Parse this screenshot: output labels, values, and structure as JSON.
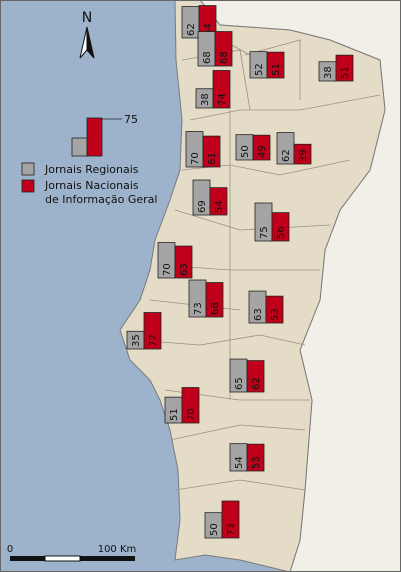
{
  "colors": {
    "sea": "#9db3cc",
    "land": "#e5dcc8",
    "spain": "#f2efe9",
    "border": "#7a7a7a",
    "regionais": "#a4a4a4",
    "nacionais": "#c0001a"
  },
  "north_label": "N",
  "legend": {
    "reference_value": "75",
    "reference_max": 75,
    "items": [
      {
        "name": "regionais-legend",
        "label": "Jornais Regionais",
        "lines": [
          "Jornais Regionais"
        ]
      },
      {
        "name": "nacionais-legend",
        "label": "Jornais Nacionais de Informação Geral",
        "lines": [
          "Jornais Nacionais",
          "de Informação Geral"
        ]
      }
    ]
  },
  "scale_bar": {
    "start_label": "0",
    "end_label": "100 Km"
  },
  "chart_data": {
    "type": "bar",
    "series": [
      {
        "name": "Jornais Regionais"
      },
      {
        "name": "Jornais Nacionais de Informação Geral"
      }
    ],
    "regions": [
      {
        "regionais": 62,
        "nacionais": 64
      },
      {
        "regionais": 68,
        "nacionais": 68
      },
      {
        "regionais": 38,
        "nacionais": 74
      },
      {
        "regionais": 52,
        "nacionais": 51
      },
      {
        "regionais": 38,
        "nacionais": 51
      },
      {
        "regionais": 70,
        "nacionais": 61
      },
      {
        "regionais": 50,
        "nacionais": 49
      },
      {
        "regionais": 62,
        "nacionais": 39
      },
      {
        "regionais": 69,
        "nacionais": 54
      },
      {
        "regionais": 75,
        "nacionais": 56
      },
      {
        "regionais": 70,
        "nacionais": 63
      },
      {
        "regionais": 73,
        "nacionais": 68
      },
      {
        "regionais": 63,
        "nacionais": 53
      },
      {
        "regionais": 35,
        "nacionais": 72
      },
      {
        "regionais": 65,
        "nacionais": 62
      },
      {
        "regionais": 51,
        "nacionais": 70
      },
      {
        "regionais": 54,
        "nacionais": 53
      },
      {
        "regionais": 50,
        "nacionais": 73
      }
    ]
  }
}
